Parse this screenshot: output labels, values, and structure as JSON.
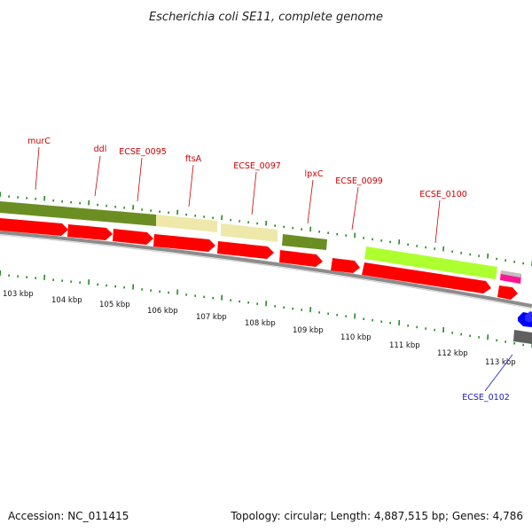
{
  "map": {
    "title": "Escherichia coli SE11, complete genome",
    "accession": "Accession: NC_011415",
    "summary": "Topology: circular; Length: 4,887,515 bp; Genes: 4,786",
    "kbp_ticks": [
      "103 kbp",
      "104 kbp",
      "105 kbp",
      "106 kbp",
      "107 kbp",
      "108 kbp",
      "109 kbp",
      "110 kbp",
      "111 kbp",
      "112 kbp",
      "113 kbp"
    ],
    "gene_labels": [
      {
        "name": "murC",
        "color": "#cc0000"
      },
      {
        "name": "ddl",
        "color": "#cc0000"
      },
      {
        "name": "ECSE_0095",
        "color": "#cc0000"
      },
      {
        "name": "ftsA",
        "color": "#cc0000"
      },
      {
        "name": "ECSE_0097",
        "color": "#cc0000"
      },
      {
        "name": "lpxC",
        "color": "#cc0000"
      },
      {
        "name": "ECSE_0099",
        "color": "#cc0000"
      },
      {
        "name": "ECSE_0100",
        "color": "#cc0000"
      },
      {
        "name": "ECSE_0102",
        "color": "#1a1acc"
      }
    ],
    "colors": {
      "forward_cds": "#ff0000",
      "reverse_cds": "#0000ff",
      "cog_olive": "#6b8e23",
      "cog_khaki": "#eee8aa",
      "cog_lime": "#adff2f",
      "cog_magenta": "#ff1493",
      "cog_gray": "#808080",
      "backbone": "#8c8c8c",
      "tick": "#228b22"
    }
  }
}
